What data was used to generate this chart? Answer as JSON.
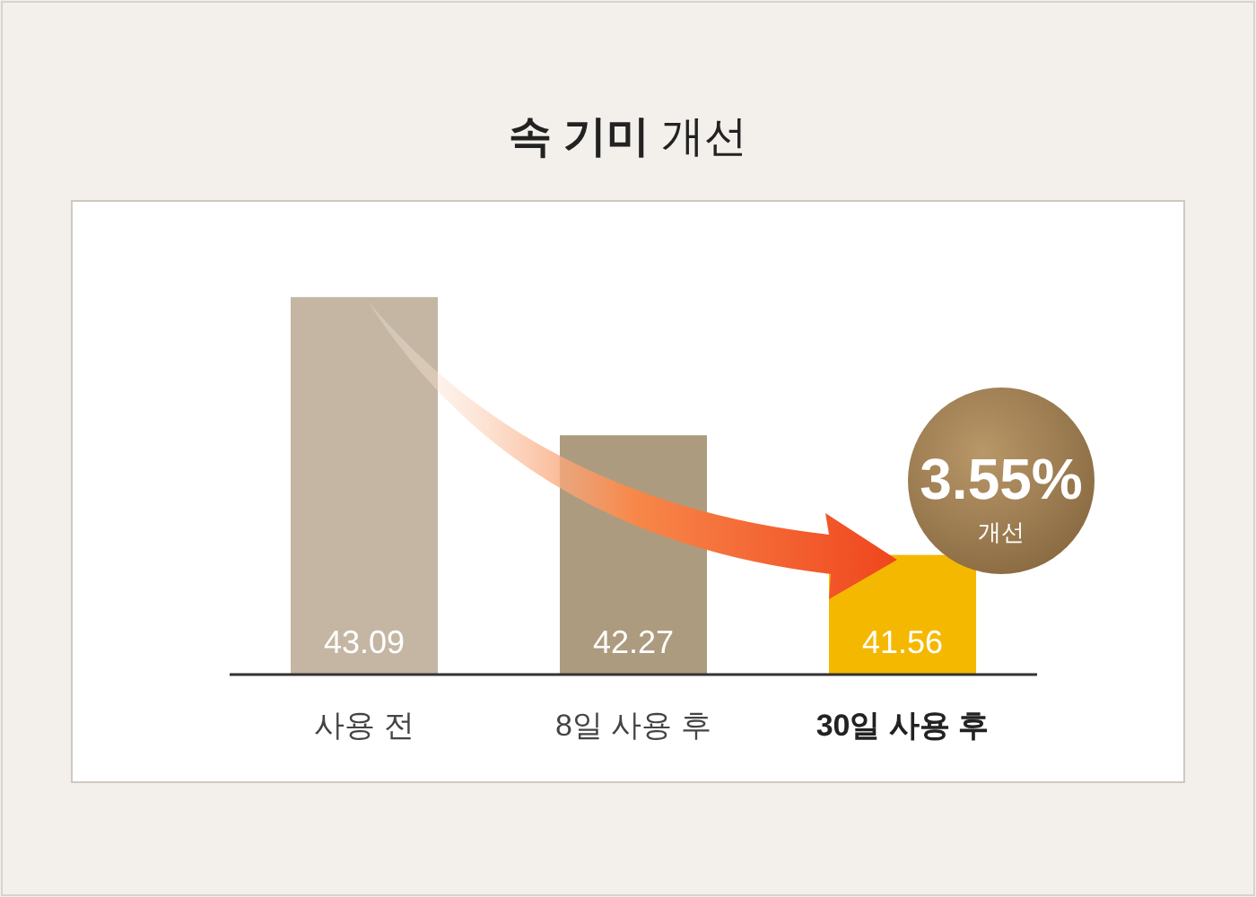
{
  "chart_data": {
    "type": "bar",
    "title": "속 기미 개선",
    "categories": [
      "사용 전",
      "8일 사용 후",
      "30일 사용 후"
    ],
    "values": [
      43.09,
      42.27,
      41.56
    ],
    "colors": [
      "#c4b6a3",
      "#ad9b7f",
      "#f5b800"
    ],
    "ylim": [
      40.85,
      43.65
    ],
    "tick_labels": "x",
    "data_labels": true,
    "annotations": [
      "3.55%",
      "개선"
    ]
  }
}
